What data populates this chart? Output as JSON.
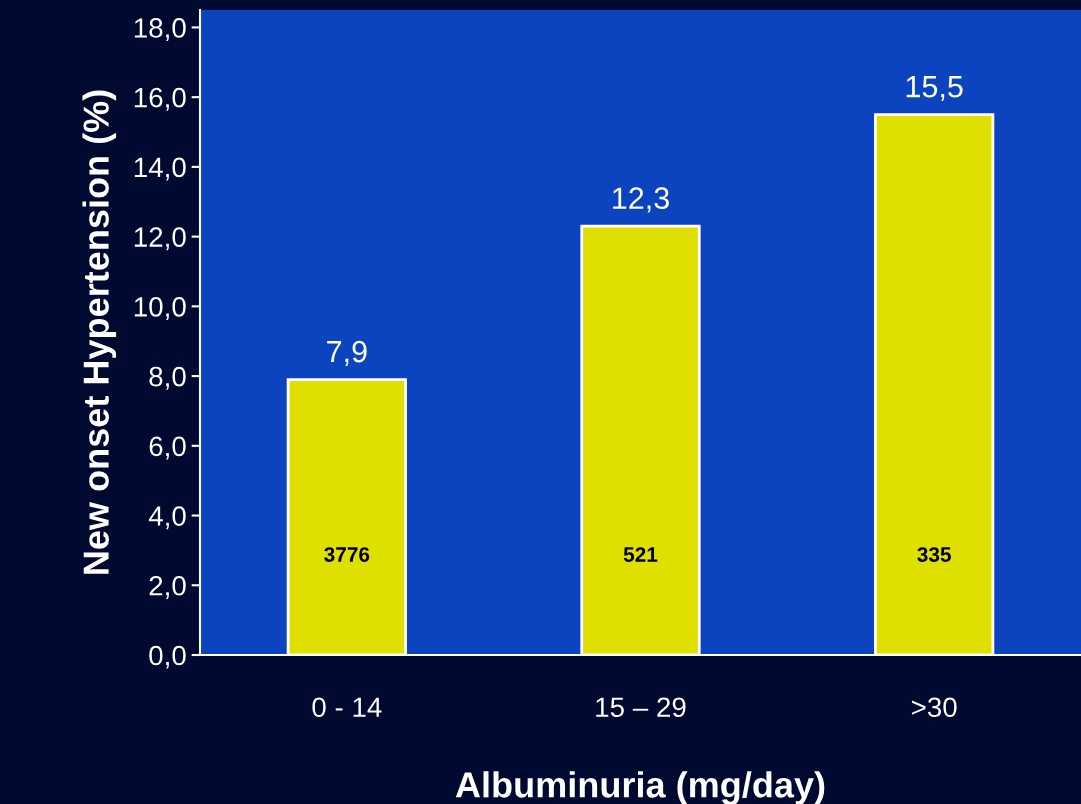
{
  "chart_data": {
    "type": "bar",
    "xlabel": "Albuminuria (mg/day)",
    "ylabel": "New onset Hypertension (%)",
    "categories": [
      "0 - 14",
      "15 – 29",
      ">30"
    ],
    "values": [
      7.9,
      12.3,
      15.5
    ],
    "value_labels": [
      "7,9",
      "12,3",
      "15,5"
    ],
    "color": "#e0e000",
    "ylim": [
      0,
      18.5
    ],
    "yticks": [
      {
        "value": 0,
        "label": "0,0"
      },
      {
        "value": 2,
        "label": "2,0"
      },
      {
        "value": 4,
        "label": "4,0"
      },
      {
        "value": 6,
        "label": "6,0"
      },
      {
        "value": 8,
        "label": "8,0"
      },
      {
        "value": 10,
        "label": "10,0"
      },
      {
        "value": 12,
        "label": "12,0"
      },
      {
        "value": 14,
        "label": "14,0"
      },
      {
        "value": 16,
        "label": "16,0"
      },
      {
        "value": 18,
        "label": "18,0"
      }
    ],
    "annotations": [
      "3776",
      "521",
      "335"
    ],
    "grid": false,
    "legend": false
  }
}
